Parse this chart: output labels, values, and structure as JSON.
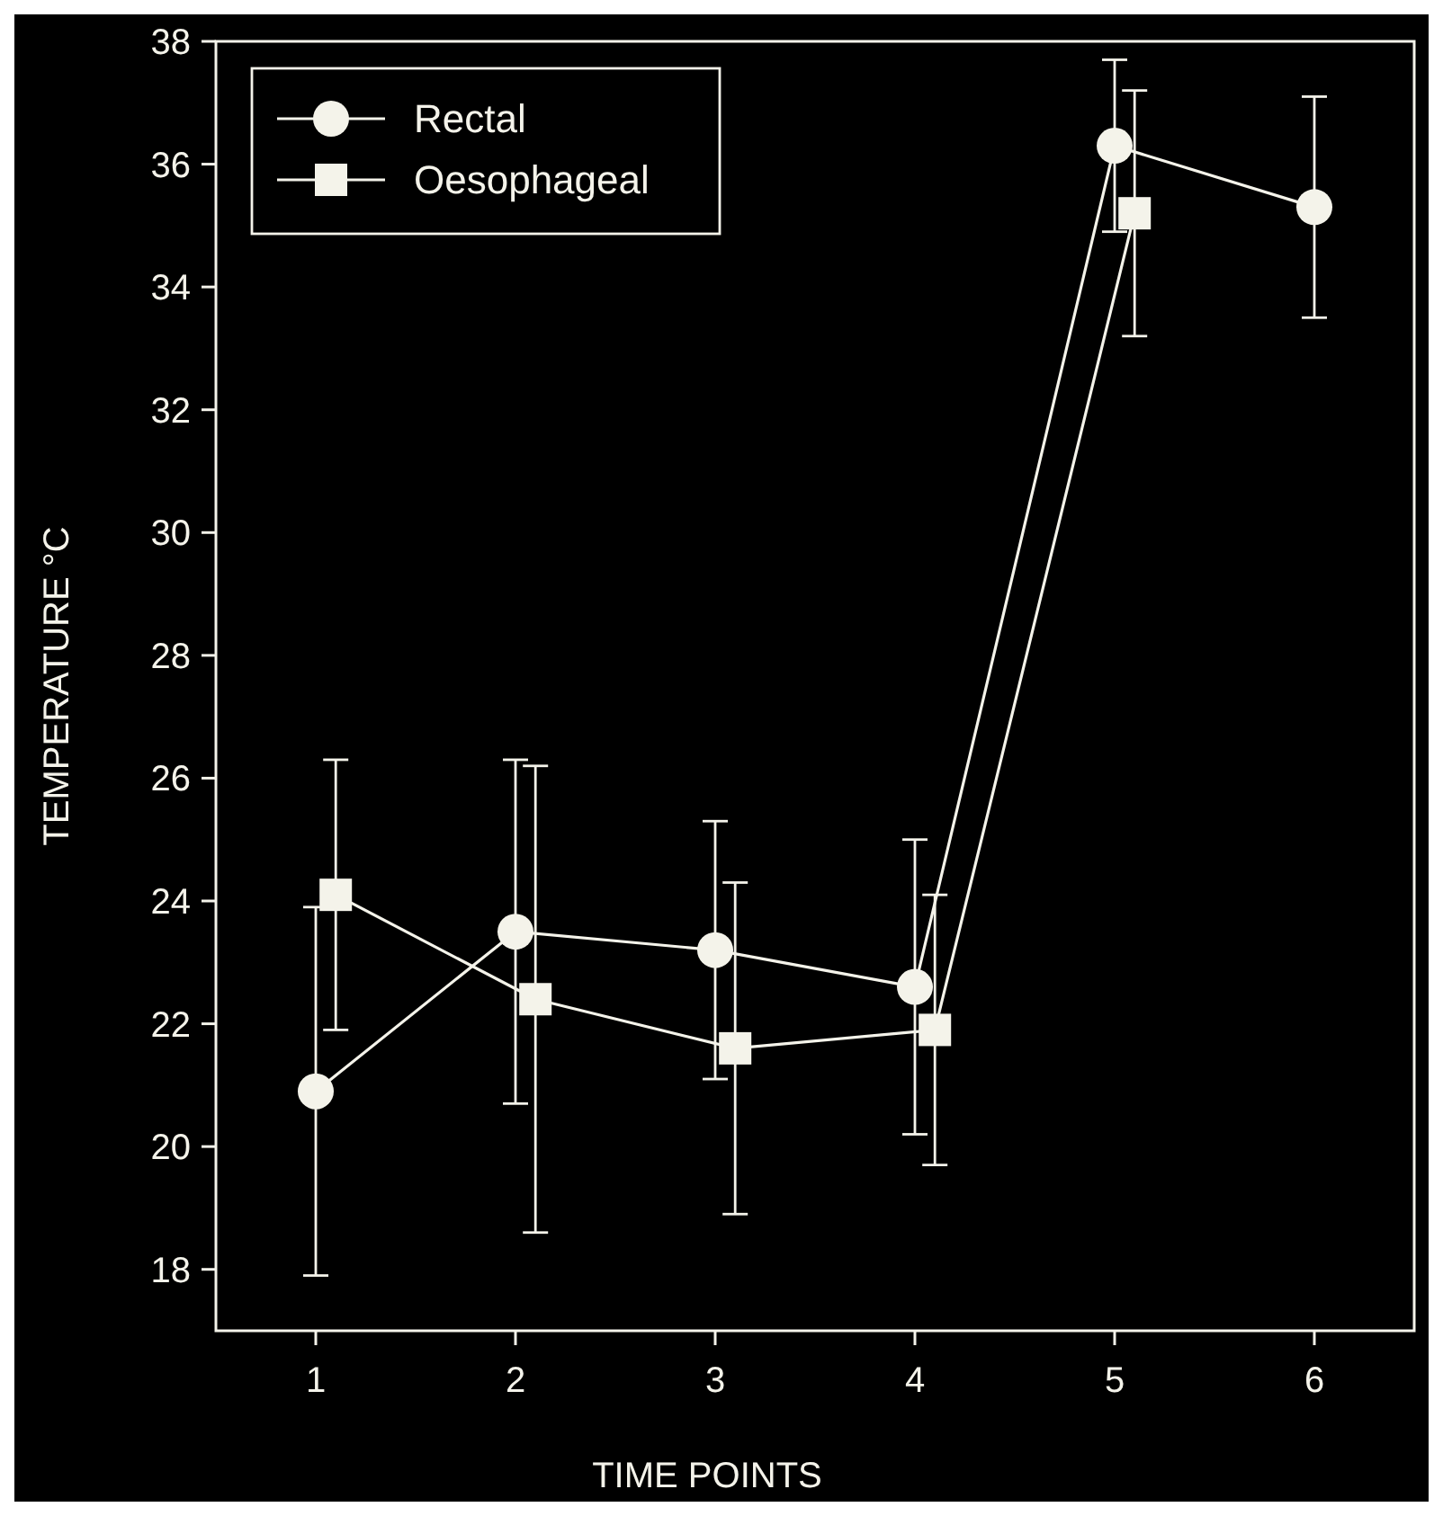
{
  "chart_data": {
    "type": "line",
    "xlabel": "TIME POINTS",
    "ylabel": "TEMPERATURE °C",
    "xlim": [
      0.5,
      6.5
    ],
    "xticks": [
      1,
      2,
      3,
      4,
      5,
      6
    ],
    "ylim": [
      17,
      38
    ],
    "yticks": [
      18,
      20,
      22,
      24,
      26,
      28,
      30,
      32,
      34,
      36,
      38
    ],
    "legend": "top left",
    "grid": false,
    "series": [
      {
        "name": "Rectal",
        "color": "#f4f3ea",
        "marker": "circle",
        "x": [
          1,
          2,
          3,
          4,
          5,
          6
        ],
        "values": [
          20.9,
          23.5,
          23.2,
          22.6,
          36.3,
          35.3
        ],
        "errors": [
          3.0,
          2.8,
          2.1,
          2.4,
          1.4,
          1.8
        ]
      },
      {
        "name": "Oesophageal",
        "color": "#f4f3ea",
        "marker": "square",
        "x": [
          1.1,
          2.1,
          3.1,
          4.1,
          5.1
        ],
        "values": [
          24.1,
          22.4,
          21.6,
          21.9,
          35.2
        ],
        "errors": [
          2.2,
          3.8,
          2.7,
          2.2,
          2.0
        ]
      }
    ]
  }
}
